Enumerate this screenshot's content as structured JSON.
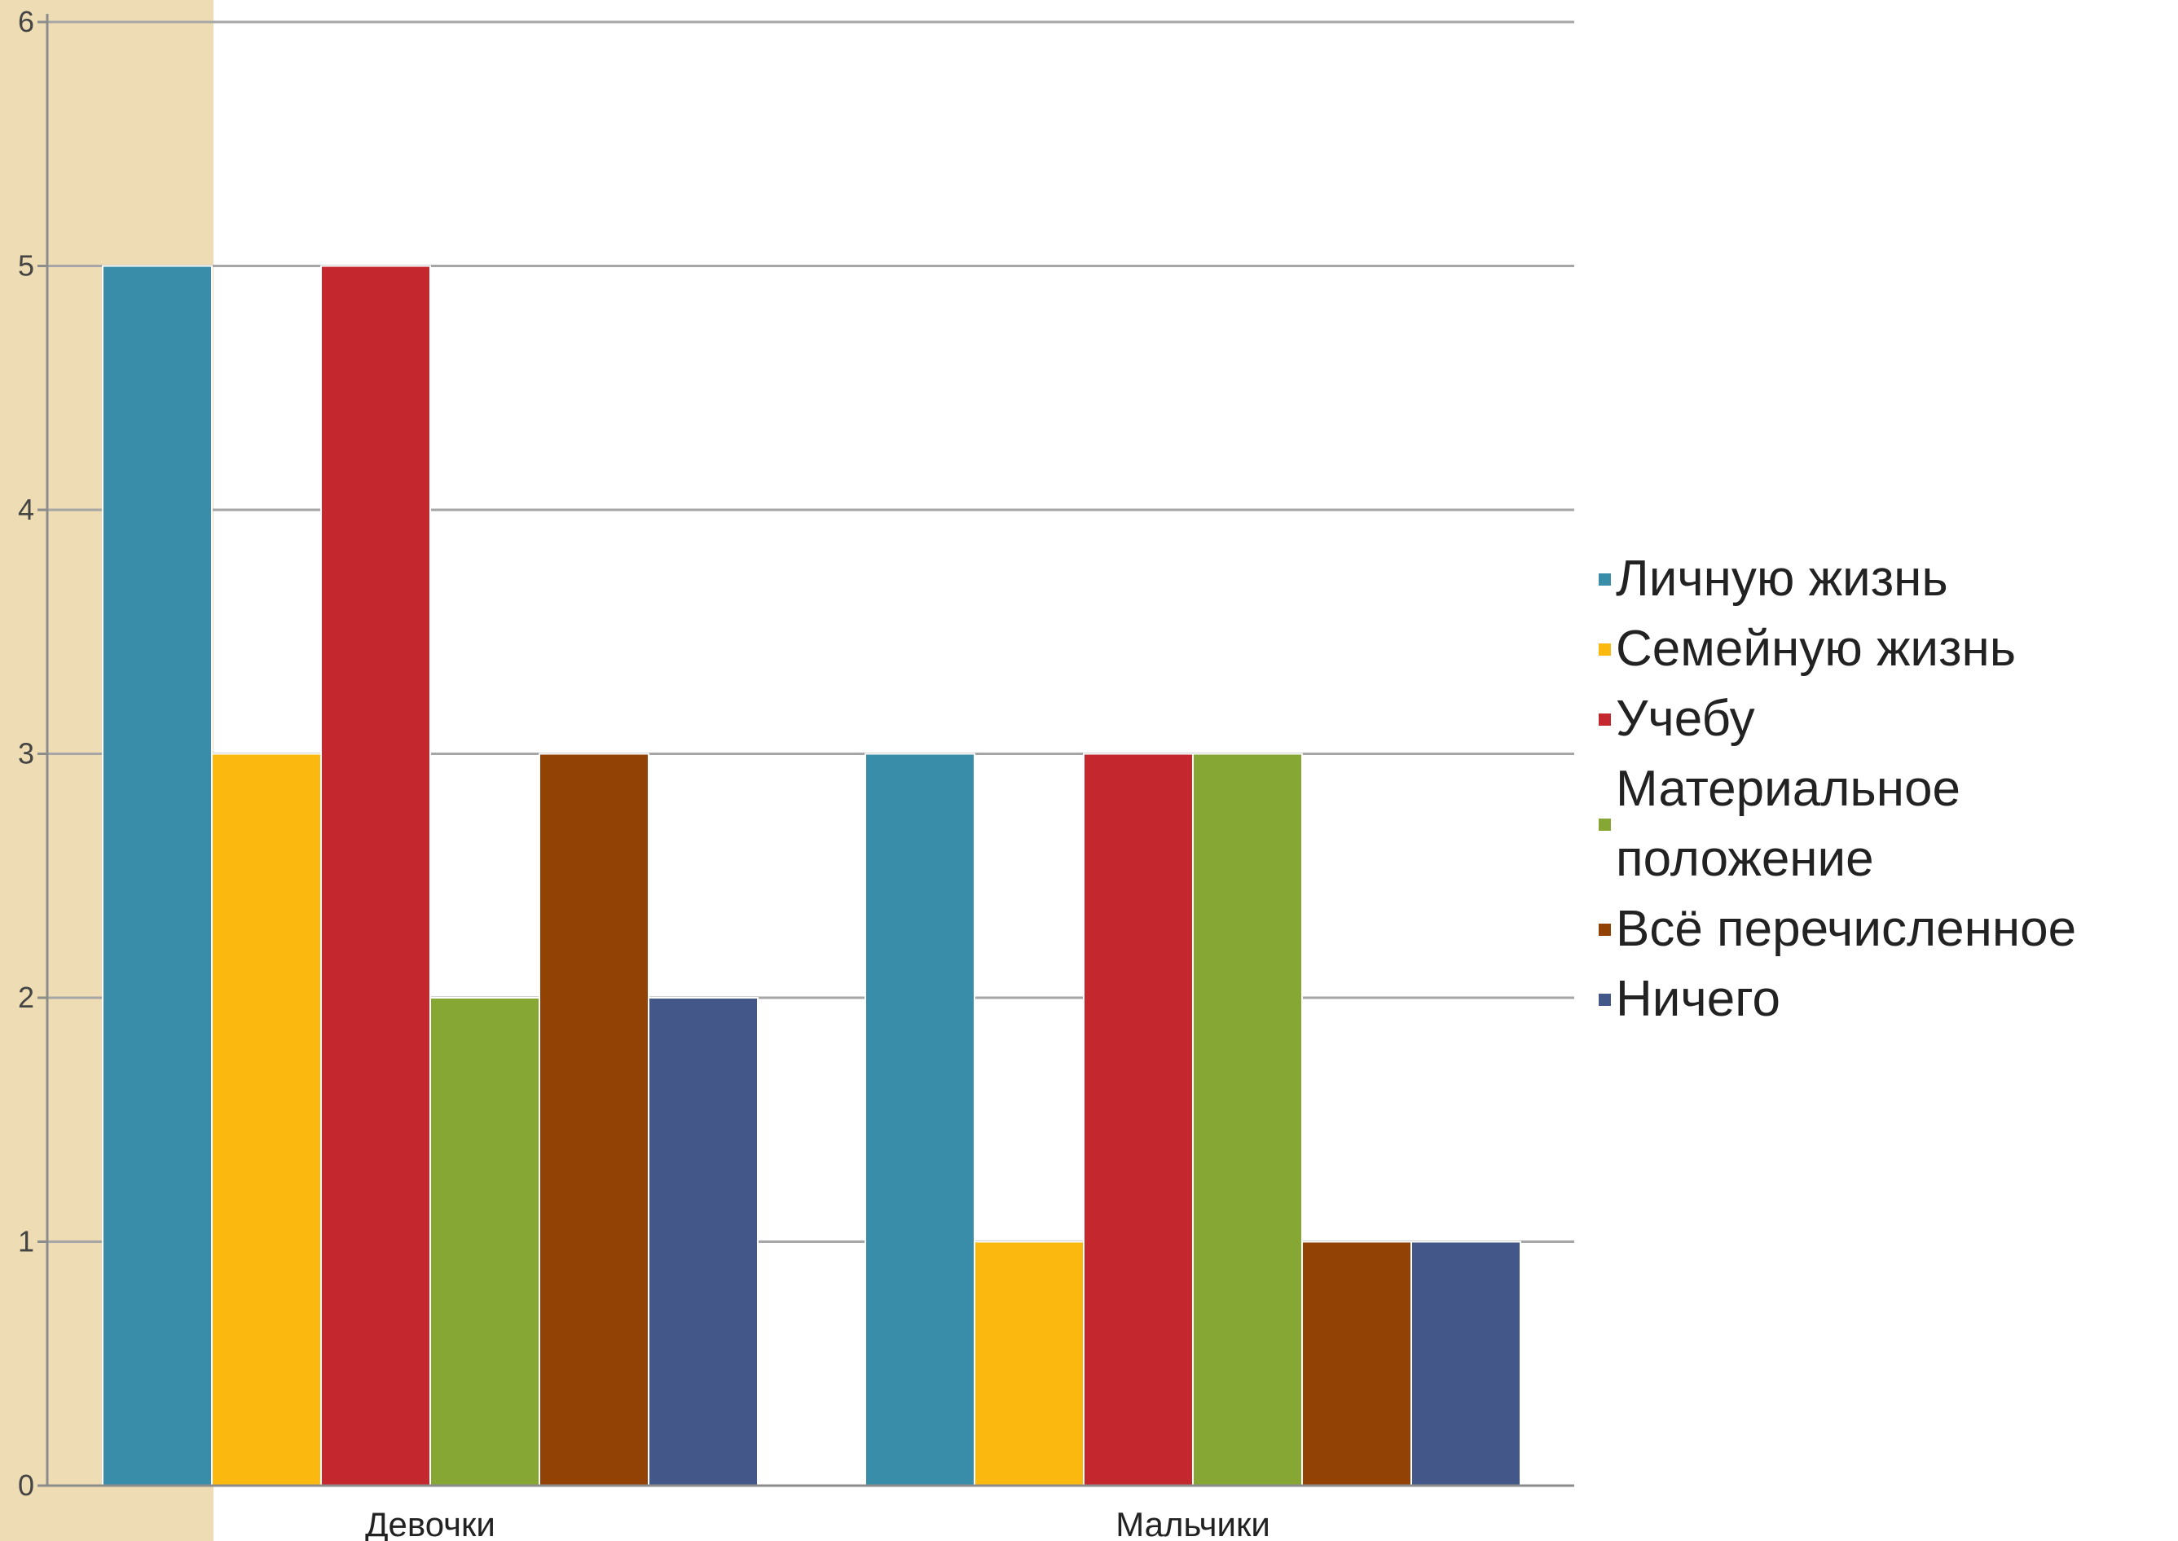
{
  "chart_data": {
    "type": "bar",
    "title": "",
    "xlabel": "",
    "ylabel": "",
    "categories": [
      "Девочки",
      "Мальчики"
    ],
    "ylim": [
      0,
      6
    ],
    "yticks": [
      "0",
      "1",
      "2",
      "3",
      "4",
      "5",
      "6"
    ],
    "grid": true,
    "legend_position": "right",
    "series": [
      {
        "name": "Личную жизнь",
        "values": [
          5,
          3
        ],
        "color": "#3A8DA8"
      },
      {
        "name": "Семейную жизнь",
        "values": [
          3,
          1
        ],
        "color": "#FBB80F"
      },
      {
        "name": "Учебу",
        "values": [
          5,
          3
        ],
        "color": "#C4282E"
      },
      {
        "name": "Материальное\nположение",
        "values": [
          2,
          3
        ],
        "color": "#86A734"
      },
      {
        "name": "Всё перечисленное",
        "values": [
          3,
          1
        ],
        "color": "#934205"
      },
      {
        "name": "Ничего",
        "values": [
          2,
          1
        ],
        "color": "#445789"
      }
    ],
    "plot_background_color": "#EEDDB4"
  }
}
